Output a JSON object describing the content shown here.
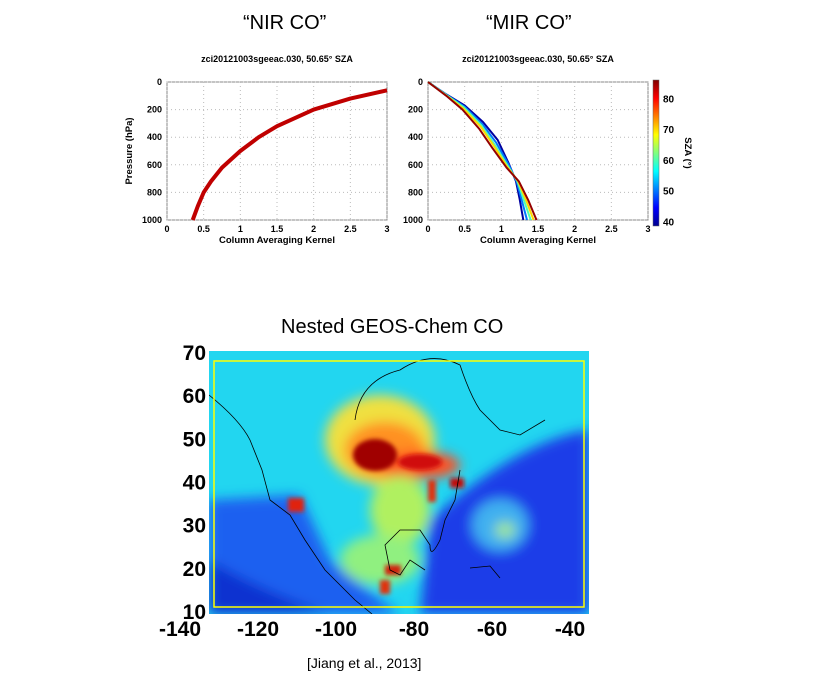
{
  "slide": {
    "label_left": "“NIR CO”",
    "label_right": "“MIR CO”",
    "map_title": "Nested GEOS-Chem CO",
    "citation": "[Jiang et al., 2013]"
  },
  "chart_data": [
    {
      "type": "line",
      "title": "zci20121003sgeeac.030, 50.65° SZA",
      "xlabel": "Column Averaging Kernel",
      "ylabel": "Pressure (hPa)",
      "xlim": [
        0,
        3
      ],
      "ylim": [
        1000,
        0
      ],
      "y_reversed": true,
      "grid": true,
      "xticks": [
        "0",
        "0.5",
        "1",
        "1.5",
        "2",
        "2.5",
        "3"
      ],
      "yticks": [
        "0",
        "200",
        "400",
        "600",
        "800",
        "1000"
      ],
      "series": [
        {
          "color": "#c00000",
          "x": [
            0.35,
            0.42,
            0.5,
            0.6,
            0.75,
            1.0,
            1.25,
            1.5,
            2.0,
            2.5,
            3.0
          ],
          "y": [
            1000,
            900,
            800,
            720,
            620,
            500,
            400,
            320,
            200,
            120,
            60
          ]
        }
      ]
    },
    {
      "type": "line",
      "title": "zci20121003sgeeac.030, 50.65° SZA",
      "xlabel": "Column Averaging Kernel",
      "xlim": [
        0,
        3
      ],
      "ylim": [
        1000,
        0
      ],
      "y_reversed": true,
      "grid": true,
      "xticks": [
        "0",
        "0.5",
        "1",
        "1.5",
        "2",
        "2.5",
        "3"
      ],
      "yticks": [
        "0",
        "200",
        "400",
        "600",
        "800",
        "1000"
      ],
      "colorbar": {
        "label": "SZA (°)",
        "ticks": [
          "40",
          "50",
          "60",
          "70",
          "80"
        ],
        "range": [
          38.5,
          86
        ],
        "colormap": "jet"
      },
      "series": [
        {
          "sza": 40,
          "x": [
            0,
            0.25,
            0.5,
            0.75,
            0.95,
            1.1,
            1.2,
            1.25,
            1.3
          ],
          "y": [
            0,
            90,
            170,
            290,
            420,
            590,
            720,
            850,
            1000
          ]
        },
        {
          "sza": 50,
          "x": [
            0,
            0.25,
            0.5,
            0.74,
            0.93,
            1.1,
            1.21,
            1.28,
            1.35
          ],
          "y": [
            0,
            92,
            180,
            305,
            440,
            600,
            720,
            860,
            1000
          ]
        },
        {
          "sza": 60,
          "x": [
            0,
            0.25,
            0.49,
            0.73,
            0.91,
            1.09,
            1.22,
            1.31,
            1.4
          ],
          "y": [
            0,
            95,
            185,
            315,
            455,
            610,
            720,
            860,
            1000
          ]
        },
        {
          "sza": 70,
          "x": [
            0,
            0.25,
            0.48,
            0.72,
            0.9,
            1.08,
            1.23,
            1.34,
            1.44
          ],
          "y": [
            0,
            98,
            192,
            325,
            465,
            615,
            720,
            860,
            1000
          ]
        },
        {
          "sza": 85,
          "x": [
            0,
            0.25,
            0.47,
            0.7,
            0.88,
            1.07,
            1.24,
            1.37,
            1.48
          ],
          "y": [
            0,
            100,
            200,
            340,
            480,
            620,
            720,
            860,
            1000
          ]
        }
      ]
    },
    {
      "type": "heatmap",
      "title": "Nested GEOS-Chem CO",
      "xlim": [
        -140,
        -40
      ],
      "ylim": [
        10,
        70
      ],
      "xticks": [
        "-140",
        "-120",
        "-100",
        "-80",
        "-60",
        "-40"
      ],
      "yticks": [
        "70",
        "60",
        "50",
        "40",
        "30",
        "20",
        "10"
      ],
      "colormap": "jet"
    }
  ]
}
